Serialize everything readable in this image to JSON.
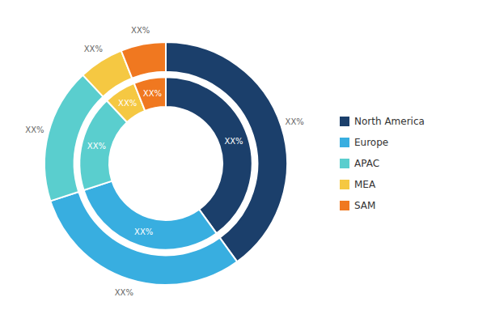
{
  "chart_data": {
    "type": "donut",
    "categories": [
      "North America",
      "Europe",
      "APAC",
      "MEA",
      "SAM"
    ],
    "colors": [
      "#1b3f6b",
      "#38aee0",
      "#5acece",
      "#f5c842",
      "#f07820"
    ],
    "series": [
      {
        "values": [
          40,
          30,
          18,
          6,
          6
        ],
        "value_labels": [
          "XX%",
          "XX%",
          "XX%",
          "XX%",
          "XX%"
        ]
      },
      {
        "values": [
          40,
          30,
          18,
          6,
          6
        ],
        "value_labels": [
          "XX%",
          "XX%",
          "XX%",
          "XX%",
          "XX%"
        ]
      }
    ],
    "legend": "right"
  }
}
